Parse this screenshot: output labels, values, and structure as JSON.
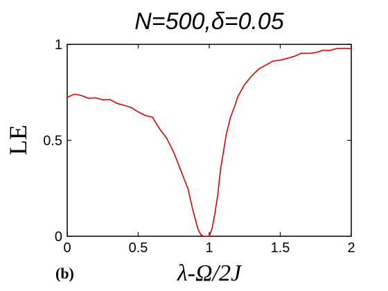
{
  "chart_data": {
    "type": "line",
    "title": "N=500,δ=0.05",
    "xlabel": "λ-Ω/2J",
    "ylabel": "LE",
    "panel_label": "(b)",
    "xlim": [
      0,
      2
    ],
    "ylim": [
      0,
      1
    ],
    "x_ticks": [
      0,
      0.5,
      1,
      1.5,
      2
    ],
    "x_tick_labels": [
      "0",
      "0.5",
      "1",
      "1.5",
      "2"
    ],
    "y_ticks": [
      0,
      0.5,
      1
    ],
    "y_tick_labels": [
      "0",
      "0.5",
      "1"
    ],
    "grid": false,
    "legend": "none",
    "colors": {
      "series": "#e00000",
      "axes": "#000000"
    },
    "series": [
      {
        "x": [
          0,
          0.05,
          0.1,
          0.15,
          0.2,
          0.25,
          0.3,
          0.35,
          0.4,
          0.45,
          0.5,
          0.55,
          0.6,
          0.65,
          0.7,
          0.75,
          0.8,
          0.85,
          0.88,
          0.9,
          0.92,
          0.94,
          0.96,
          0.98,
          1.0,
          1.02,
          1.04,
          1.06,
          1.08,
          1.1,
          1.12,
          1.15,
          1.18,
          1.2,
          1.25,
          1.3,
          1.35,
          1.4,
          1.45,
          1.5,
          1.55,
          1.6,
          1.65,
          1.7,
          1.75,
          1.8,
          1.85,
          1.9,
          1.95,
          2.0
        ],
        "y": [
          0.72,
          0.74,
          0.73,
          0.72,
          0.72,
          0.71,
          0.71,
          0.69,
          0.68,
          0.67,
          0.65,
          0.63,
          0.62,
          0.56,
          0.51,
          0.44,
          0.34,
          0.25,
          0.15,
          0.09,
          0.04,
          0.01,
          0.0,
          0.0,
          0.0,
          0.04,
          0.12,
          0.22,
          0.35,
          0.44,
          0.53,
          0.62,
          0.68,
          0.73,
          0.79,
          0.84,
          0.87,
          0.89,
          0.91,
          0.92,
          0.93,
          0.94,
          0.95,
          0.955,
          0.96,
          0.965,
          0.97,
          0.975,
          0.98,
          0.98
        ]
      }
    ]
  }
}
